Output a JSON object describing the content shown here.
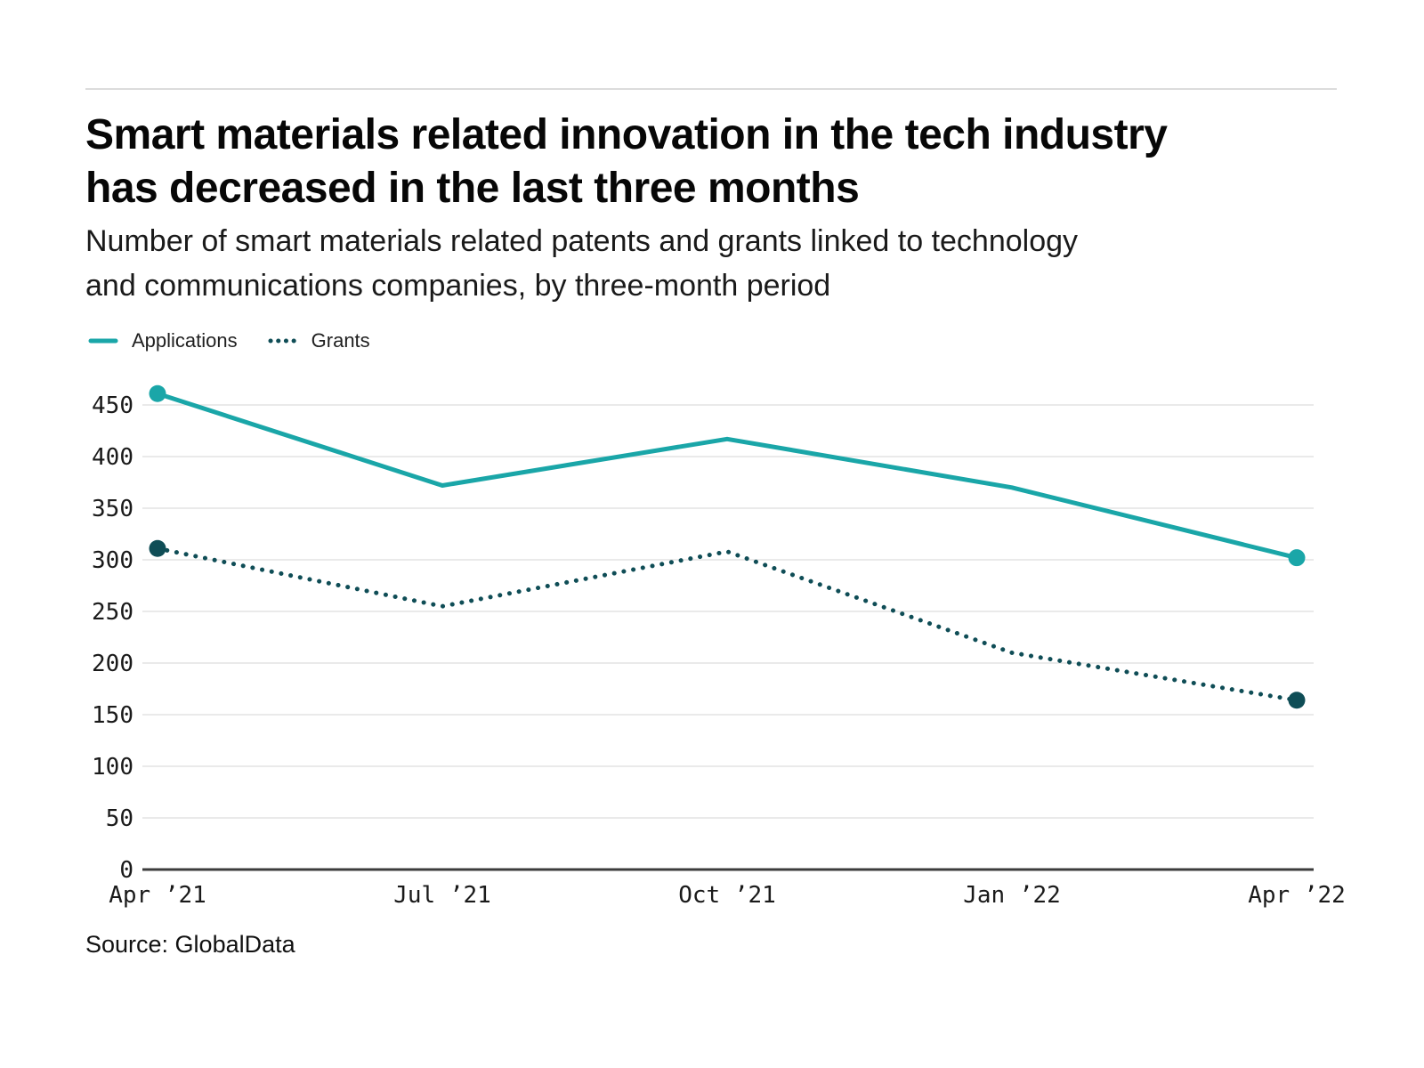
{
  "header": {
    "title_lines": [
      "Smart materials related innovation in the tech industry",
      "has decreased in the last three months"
    ],
    "subtitle_lines": [
      "Number of smart materials related patents and grants linked to technology",
      "and communications companies, by three-month period"
    ]
  },
  "source": {
    "label": "Source: GlobalData"
  },
  "chart_data": {
    "type": "line",
    "title": "Smart materials related innovation in the tech industry has decreased in the last three months",
    "subtitle": "Number of smart materials related patents and grants linked to technology and communications companies, by three-month period",
    "categories": [
      "Apr ’21",
      "Jul ’21",
      "Oct ’21",
      "Jan ’22",
      "Apr ’22"
    ],
    "series": [
      {
        "name": "Applications",
        "values": [
          461,
          372,
          417,
          370,
          302
        ],
        "color": "#1aa6a8",
        "line_style": "solid"
      },
      {
        "name": "Grants",
        "values": [
          311,
          255,
          308,
          210,
          164
        ],
        "color": "#0f4d56",
        "line_style": "dotted"
      }
    ],
    "y_ticks": [
      0,
      50,
      100,
      150,
      200,
      250,
      300,
      350,
      400,
      450
    ],
    "ylim": [
      0,
      475
    ],
    "grid": "horizontal",
    "grid_color": "#e4e4e4",
    "axis_color": "#3c3c3c",
    "legend_position": "top-left",
    "end_point_markers": true
  }
}
